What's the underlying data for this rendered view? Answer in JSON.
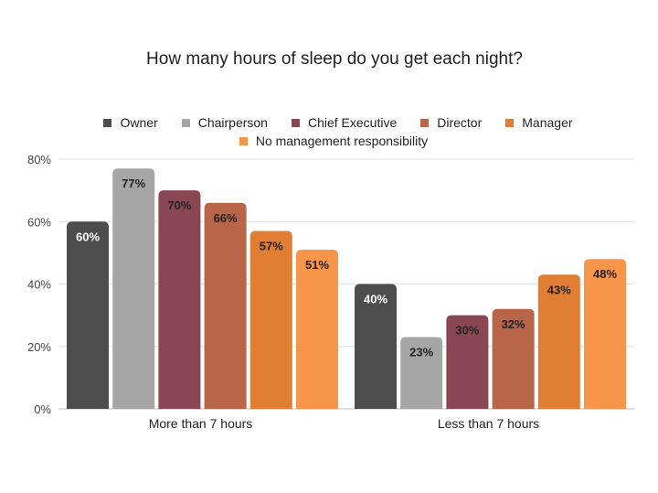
{
  "chart_data": {
    "type": "bar",
    "title": "How many hours of sleep do you get each night?",
    "xlabel": "",
    "ylabel": "",
    "ylim": [
      0,
      80
    ],
    "y_ticks": [
      0,
      20,
      40,
      60,
      80
    ],
    "y_tick_labels": [
      "0%",
      "20%",
      "40%",
      "60%",
      "80%"
    ],
    "grid": true,
    "legend_position": "top",
    "categories": [
      "More than 7 hours",
      "Less than 7 hours"
    ],
    "series": [
      {
        "name": "Owner",
        "values": [
          60,
          40
        ],
        "labels": [
          "60%",
          "40%"
        ],
        "color": "#4d4d4d",
        "label_color": "#ffffff"
      },
      {
        "name": "Chairperson",
        "values": [
          77,
          23
        ],
        "labels": [
          "77%",
          "23%"
        ],
        "color": "#a6a6a6",
        "label_color": "#222222"
      },
      {
        "name": "Chief Executive",
        "values": [
          70,
          30
        ],
        "labels": [
          "70%",
          "30%"
        ],
        "color": "#8b4654",
        "label_color": "#222222"
      },
      {
        "name": "Director",
        "values": [
          66,
          32
        ],
        "labels": [
          "66%",
          "32%"
        ],
        "color": "#b8654a",
        "label_color": "#222222"
      },
      {
        "name": "Manager",
        "values": [
          57,
          43
        ],
        "labels": [
          "57%",
          "43%"
        ],
        "color": "#e07f34",
        "label_color": "#222222"
      },
      {
        "name": "No management responsibility",
        "values": [
          51,
          48
        ],
        "labels": [
          "51%",
          "48%"
        ],
        "color": "#f7964a",
        "label_color": "#222222"
      }
    ]
  }
}
